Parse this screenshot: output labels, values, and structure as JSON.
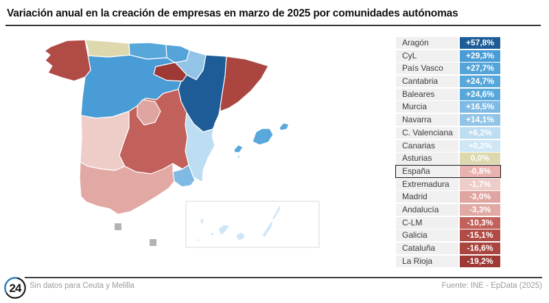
{
  "title": "Variación anual en la creación de empresas en marzo de 2025 por comunidades autónomas",
  "footer": {
    "logo_text": "24",
    "note": "Sin datos para Ceuta y Melilla",
    "source": "Fuente: INE - EpData (2025)"
  },
  "colors": {
    "logo_arc_blue": "#2c7cc0",
    "logo_arc_dark": "#1d1d1b",
    "no_data_gray": "#b3b3b3",
    "label_bg": "#f0f0f0",
    "highlight_border": "#111111"
  },
  "table": {
    "rows": [
      {
        "name": "Aragón",
        "value": "+57,8%",
        "color": "#1d5c97",
        "region": "aragon",
        "highlight": false
      },
      {
        "name": "CyL",
        "value": "+29,3%",
        "color": "#4a9cd6",
        "region": "cyl",
        "highlight": false
      },
      {
        "name": "País Vasco",
        "value": "+27,7%",
        "color": "#54a4d9",
        "region": "pais_vasco",
        "highlight": false
      },
      {
        "name": "Cantabria",
        "value": "+24,7%",
        "color": "#58a7db",
        "region": "cantabria",
        "highlight": false
      },
      {
        "name": "Baleares",
        "value": "+24,6%",
        "color": "#59a8dc",
        "region": "baleares",
        "highlight": false
      },
      {
        "name": "Murcia",
        "value": "+16,5%",
        "color": "#7ebae4",
        "region": "murcia",
        "highlight": false
      },
      {
        "name": "Navarra",
        "value": "+14,1%",
        "color": "#92c4e8",
        "region": "navarra",
        "highlight": false
      },
      {
        "name": "C. Valenciana",
        "value": "+6,2%",
        "color": "#bcddf2",
        "region": "c_valenciana",
        "highlight": false
      },
      {
        "name": "Canarias",
        "value": "+0,2%",
        "color": "#cfe6f6",
        "region": "canarias",
        "highlight": false
      },
      {
        "name": "Asturias",
        "value": "0,0%",
        "color": "#ddd8ad",
        "region": "asturias",
        "highlight": false
      },
      {
        "name": "España",
        "value": "-0,8%",
        "color": "#e9b2af",
        "region": null,
        "highlight": true
      },
      {
        "name": "Extremadura",
        "value": "-1,7%",
        "color": "#eecdc9",
        "region": "extremadura",
        "highlight": false
      },
      {
        "name": "Madrid",
        "value": "-3,0%",
        "color": "#dfa5a1",
        "region": "madrid",
        "highlight": false
      },
      {
        "name": "Andalucía",
        "value": "-3,3%",
        "color": "#e2a8a4",
        "region": "andalucia",
        "highlight": false
      },
      {
        "name": "C-LM",
        "value": "-10,3%",
        "color": "#c2605b",
        "region": "clm",
        "highlight": false
      },
      {
        "name": "Galicia",
        "value": "-15,1%",
        "color": "#b14b46",
        "region": "galicia",
        "highlight": false
      },
      {
        "name": "Cataluña",
        "value": "-16,6%",
        "color": "#aa4540",
        "region": "cataluna",
        "highlight": false
      },
      {
        "name": "La Rioja",
        "value": "-19,2%",
        "color": "#9e3936",
        "region": "la_rioja",
        "highlight": false
      }
    ]
  },
  "chart_data": {
    "type": "heatmap",
    "subtype": "choropleth-map-of-spain-with-value-list",
    "title": "Variación anual en la creación de empresas en marzo de 2025 por comunidades autónomas",
    "unit": "%",
    "regions": [
      {
        "name": "Aragón",
        "value": 57.8
      },
      {
        "name": "CyL",
        "value": 29.3
      },
      {
        "name": "País Vasco",
        "value": 27.7
      },
      {
        "name": "Cantabria",
        "value": 24.7
      },
      {
        "name": "Baleares",
        "value": 24.6
      },
      {
        "name": "Murcia",
        "value": 16.5
      },
      {
        "name": "Navarra",
        "value": 14.1
      },
      {
        "name": "C. Valenciana",
        "value": 6.2
      },
      {
        "name": "Canarias",
        "value": 0.2
      },
      {
        "name": "Asturias",
        "value": 0.0
      },
      {
        "name": "España",
        "value": -0.8
      },
      {
        "name": "Extremadura",
        "value": -1.7
      },
      {
        "name": "Madrid",
        "value": -3.0
      },
      {
        "name": "Andalucía",
        "value": -3.3
      },
      {
        "name": "C-LM",
        "value": -10.3
      },
      {
        "name": "Galicia",
        "value": -15.1
      },
      {
        "name": "Cataluña",
        "value": -16.6
      },
      {
        "name": "La Rioja",
        "value": -19.2
      }
    ],
    "no_data": [
      "Ceuta",
      "Melilla"
    ],
    "color_scale": "blue(positive) to red(negative), beige at 0",
    "legend_position": "right-value-list",
    "source": "Fuente: INE - EpData (2025)"
  }
}
